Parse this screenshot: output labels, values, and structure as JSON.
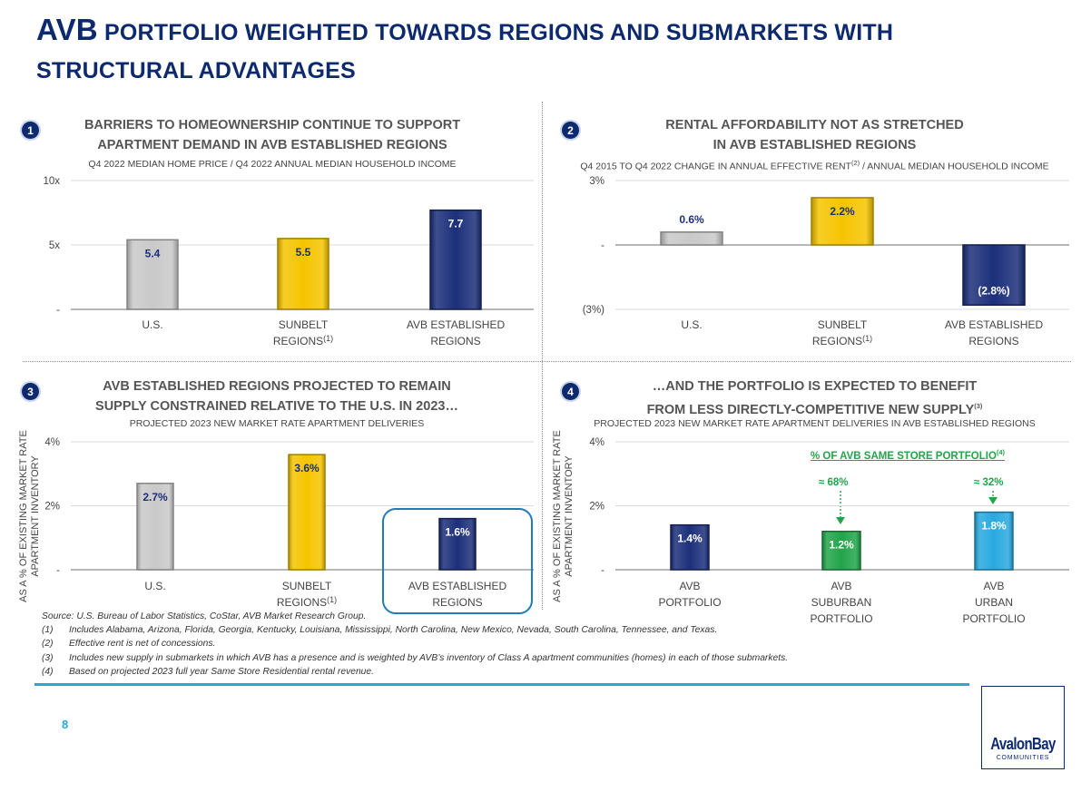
{
  "page_title": {
    "line1_big": "AVB",
    "line1_rest": " PORTFOLIO WEIGHTED TOWARDS REGIONS AND SUBMARKETS WITH",
    "line2": "STRUCTURAL ADVANTAGES"
  },
  "panels": {
    "p1": {
      "badge": "1",
      "title1": "BARRIERS TO HOMEOWNERSHIP CONTINUE TO SUPPORT",
      "title2": "APARTMENT DEMAND IN AVB ESTABLISHED REGIONS",
      "subtitle": "Q4 2022 MEDIAN HOME PRICE / Q4 2022 ANNUAL MEDIAN HOUSEHOLD INCOME"
    },
    "p2": {
      "badge": "2",
      "title1": "RENTAL AFFORDABILITY NOT AS STRETCHED",
      "title2": "IN AVB ESTABLISHED REGIONS",
      "subtitle_a": "Q4 2015 TO Q4 2022 CHANGE IN ANNUAL EFFECTIVE RENT",
      "subtitle_sup": "(2)",
      "subtitle_b": " / ANNUAL MEDIAN HOUSEHOLD INCOME"
    },
    "p3": {
      "badge": "3",
      "title1": "AVB ESTABLISHED REGIONS PROJECTED TO REMAIN",
      "title2": "SUPPLY CONSTRAINED RELATIVE TO THE U.S. IN 2023…",
      "subtitle": "PROJECTED 2023 NEW MARKET RATE APARTMENT DELIVERIES",
      "ylabel1": "AS A % OF EXISTING MARKET RATE",
      "ylabel2": "APARTMENT INVENTORY"
    },
    "p4": {
      "badge": "4",
      "title1": "…AND THE PORTFOLIO IS EXPECTED TO BENEFIT",
      "title2a": "FROM LESS DIRECTLY-COMPETITIVE NEW SUPPLY",
      "title2_sup": "(3)",
      "subtitle": "PROJECTED 2023 NEW MARKET RATE APARTMENT DELIVERIES IN AVB ESTABLISHED REGIONS",
      "ylabel1": "AS A % OF EXISTING MARKET RATE",
      "ylabel2": "APARTMENT INVENTORY",
      "note": "% OF AVB SAME STORE PORTFOLIO",
      "note_sup": "(4)",
      "pct_suburban": "≈ 68%",
      "pct_urban": "≈ 32%"
    }
  },
  "chart_data": [
    {
      "type": "bar",
      "ylim": [
        0,
        10
      ],
      "yticks": [
        "-",
        "5x",
        "10x"
      ],
      "categories": [
        [
          "U.S."
        ],
        [
          "SUNBELT",
          "REGIONS(1)"
        ],
        [
          "AVB ESTABLISHED",
          "REGIONS"
        ]
      ],
      "values": [
        5.4,
        5.5,
        7.7
      ],
      "labels": [
        "5.4",
        "5.5",
        "7.7"
      ],
      "colors": [
        "#c9c9c9",
        "#f5c400",
        "#1c2f7a"
      ],
      "label_colors": [
        "#1c2f7a",
        "#1c2f7a",
        "#ffffff"
      ]
    },
    {
      "type": "bar",
      "ylim": [
        -3,
        3
      ],
      "yticks": [
        "(3%)",
        "-",
        "3%"
      ],
      "categories": [
        [
          "U.S."
        ],
        [
          "SUNBELT",
          "REGIONS(1)"
        ],
        [
          "AVB ESTABLISHED",
          "REGIONS"
        ]
      ],
      "values": [
        0.6,
        2.2,
        -2.8
      ],
      "labels": [
        "0.6%",
        "2.2%",
        "(2.8%)"
      ],
      "colors": [
        "#c9c9c9",
        "#f5c400",
        "#1c2f7a"
      ],
      "label_colors": [
        "#1c2f7a",
        "#1c2f7a",
        "#ffffff"
      ]
    },
    {
      "type": "bar",
      "ylim": [
        0,
        4
      ],
      "yticks": [
        "-",
        "2%",
        "4%"
      ],
      "categories": [
        [
          "U.S."
        ],
        [
          "SUNBELT",
          "REGIONS(1)"
        ],
        [
          "AVB ESTABLISHED",
          "REGIONS"
        ]
      ],
      "values": [
        2.7,
        3.6,
        1.6
      ],
      "labels": [
        "2.7%",
        "3.6%",
        "1.6%"
      ],
      "colors": [
        "#c9c9c9",
        "#f5c400",
        "#1c2f7a"
      ],
      "label_colors": [
        "#1c2f7a",
        "#1c2f7a",
        "#ffffff"
      ],
      "highlight": 2
    },
    {
      "type": "bar",
      "ylim": [
        0,
        4
      ],
      "yticks": [
        "-",
        "2%",
        "4%"
      ],
      "categories": [
        [
          "AVB",
          "PORTFOLIO"
        ],
        [
          "AVB",
          "SUBURBAN",
          "PORTFOLIO"
        ],
        [
          "AVB",
          "URBAN",
          "PORTFOLIO"
        ]
      ],
      "values": [
        1.4,
        1.2,
        1.8
      ],
      "labels": [
        "1.4%",
        "1.2%",
        "1.8%"
      ],
      "colors": [
        "#1c2f7a",
        "#22a44a",
        "#29a9e0"
      ],
      "label_colors": [
        "#ffffff",
        "#ffffff",
        "#ffffff"
      ]
    }
  ],
  "footnotes": {
    "source": "Source:  U.S. Bureau of Labor Statistics, CoStar, AVB Market Research Group.",
    "items": [
      {
        "num": "(1)",
        "text": "Includes Alabama, Arizona, Florida, Georgia, Kentucky, Louisiana, Mississippi, North Carolina, New Mexico, Nevada, South Carolina, Tennessee, and Texas."
      },
      {
        "num": "(2)",
        "text": "Effective rent is net of concessions."
      },
      {
        "num": "(3)",
        "text": "Includes new supply in submarkets in which AVB has a presence and is weighted by AVB’s inventory of Class A apartment communities (homes) in each of those submarkets."
      },
      {
        "num": "(4)",
        "text": "Based on projected 2023 full year Same Store Residential rental revenue."
      }
    ]
  },
  "page_number": "8",
  "logo": {
    "name": "AvalonBay",
    "sub": "COMMUNITIES"
  }
}
